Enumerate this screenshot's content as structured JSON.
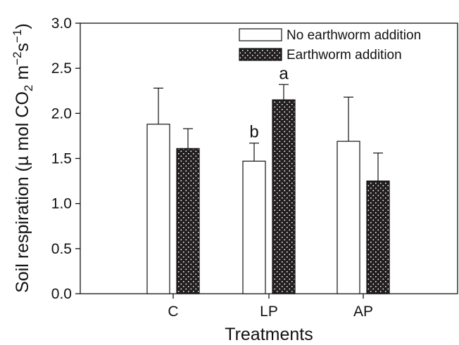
{
  "chart_data": {
    "type": "bar",
    "categories": [
      "C",
      "LP",
      "AP"
    ],
    "series": [
      {
        "name": "No earthworm addition",
        "values": [
          1.88,
          1.47,
          1.69
        ],
        "errors": [
          0.4,
          0.2,
          0.49
        ],
        "fill": "#ffffff"
      },
      {
        "name": "Earthworm addition",
        "values": [
          1.61,
          2.15,
          1.25
        ],
        "errors": [
          0.22,
          0.17,
          0.31
        ],
        "fill": "#231f20"
      }
    ],
    "significance": [
      {
        "category": "LP",
        "series": "No earthworm addition",
        "label": "b"
      },
      {
        "category": "LP",
        "series": "Earthworm addition",
        "label": "a"
      }
    ],
    "xlabel": "Treatments",
    "ylabel_parts": [
      "Soil respiration (µ mol CO",
      "2",
      " m",
      "−2",
      "s",
      "−1",
      ")"
    ],
    "ylim": [
      0,
      3.0
    ],
    "yticks": [
      "0.0",
      "0.5",
      "1.0",
      "1.5",
      "2.0",
      "2.5",
      "3.0"
    ],
    "legend_position": "top-right",
    "grid": false
  }
}
